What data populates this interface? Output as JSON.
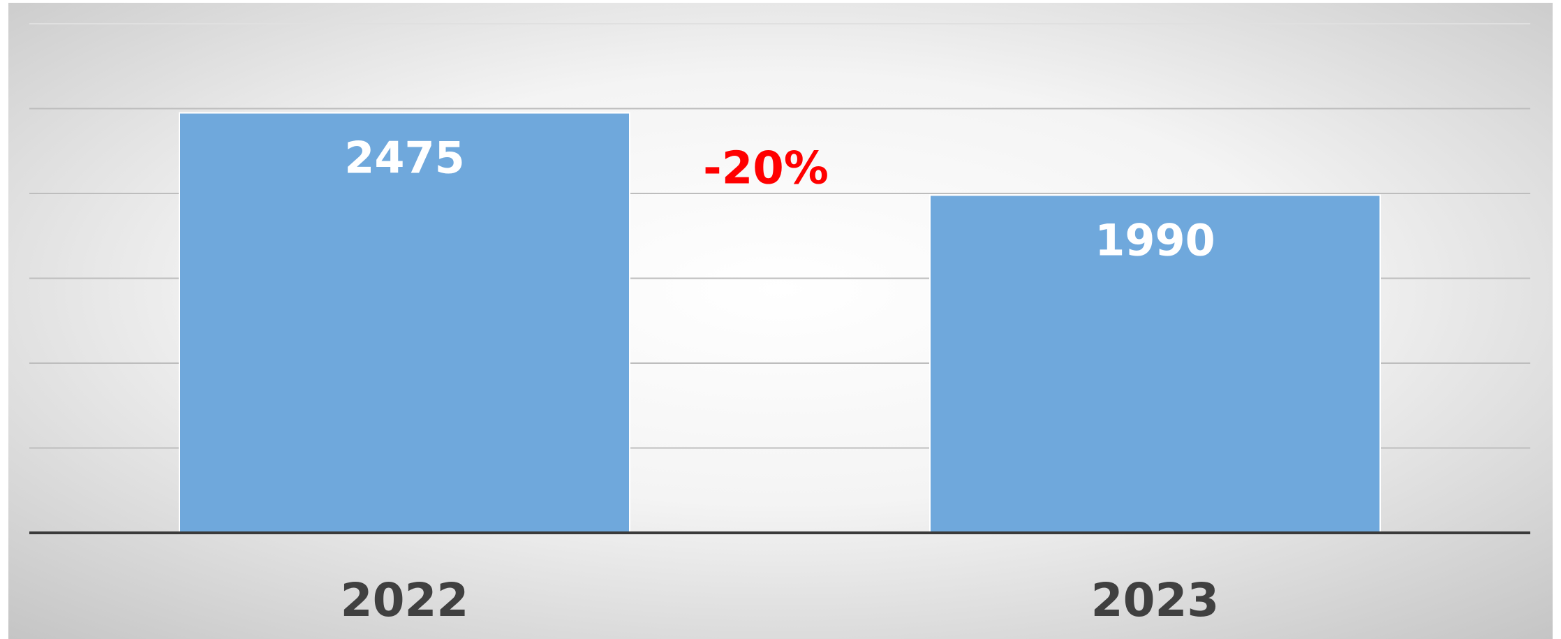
{
  "chart_data": {
    "type": "bar",
    "categories": [
      "2022",
      "2023"
    ],
    "values": [
      2475,
      1990
    ],
    "title": "",
    "xlabel": "",
    "ylabel": "",
    "ylim": [
      0,
      3000
    ],
    "grid": true,
    "legend": "none",
    "bar_color": "#6fa8dc",
    "data_label_color": "#ffffff",
    "annotation": {
      "text": "-20%",
      "color": "#ff0000"
    }
  }
}
